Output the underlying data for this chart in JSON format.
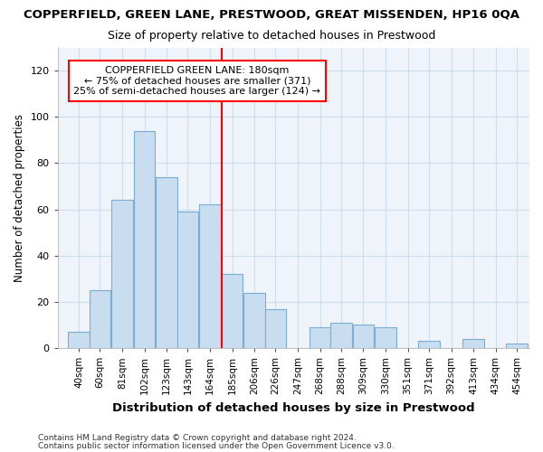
{
  "title": "COPPERFIELD, GREEN LANE, PRESTWOOD, GREAT MISSENDEN, HP16 0QA",
  "subtitle": "Size of property relative to detached houses in Prestwood",
  "xlabel": "Distribution of detached houses by size in Prestwood",
  "ylabel": "Number of detached properties",
  "bar_labels": [
    "40sqm",
    "60sqm",
    "81sqm",
    "102sqm",
    "123sqm",
    "143sqm",
    "164sqm",
    "185sqm",
    "206sqm",
    "226sqm",
    "247sqm",
    "268sqm",
    "288sqm",
    "309sqm",
    "330sqm",
    "351sqm",
    "371sqm",
    "392sqm",
    "413sqm",
    "434sqm",
    "454sqm"
  ],
  "bar_values": [
    7,
    25,
    64,
    94,
    74,
    59,
    62,
    32,
    24,
    17,
    0,
    9,
    11,
    10,
    9,
    0,
    3,
    0,
    4,
    0,
    2
  ],
  "bar_color": "#c8ddf0",
  "bar_edge_color": "#7aadd4",
  "annotation_line_color": "red",
  "annotation_text_line1": "COPPERFIELD GREEN LANE: 180sqm",
  "annotation_text_line2": "← 75% of detached houses are smaller (371)",
  "annotation_text_line3": "25% of semi-detached houses are larger (124) →",
  "annotation_box_color": "white",
  "annotation_box_edge": "red",
  "ylim": [
    0,
    130
  ],
  "yticks": [
    0,
    20,
    40,
    60,
    80,
    100,
    120
  ],
  "grid_color": "#ccddee",
  "footer_line1": "Contains HM Land Registry data © Crown copyright and database right 2024.",
  "footer_line2": "Contains public sector information licensed under the Open Government Licence v3.0.",
  "bg_color": "#ffffff",
  "plot_bg_color": "#eef4f9"
}
